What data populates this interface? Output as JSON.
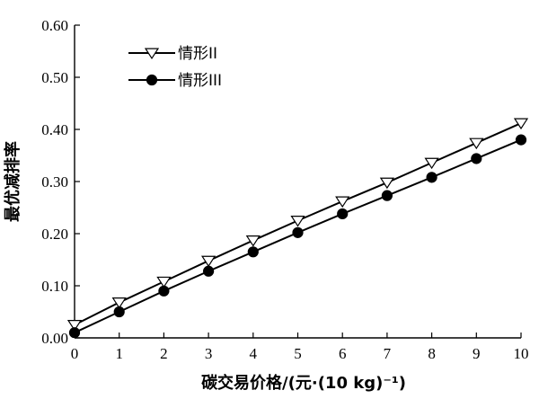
{
  "chart_data": {
    "type": "line",
    "title": "",
    "xlabel": "碳交易价格/(元·(10 kg)⁻¹)",
    "ylabel": "最优减排率",
    "xlim": [
      0,
      10
    ],
    "ylim": [
      0,
      0.6
    ],
    "x_ticks": [
      "0",
      "1",
      "2",
      "3",
      "4",
      "5",
      "6",
      "7",
      "8",
      "9",
      "10"
    ],
    "y_ticks": [
      "0.00",
      "0.10",
      "0.20",
      "0.30",
      "0.40",
      "0.50",
      "0.60"
    ],
    "x": [
      0,
      1,
      2,
      3,
      4,
      5,
      6,
      7,
      8,
      9,
      10
    ],
    "legend_position": "top-left",
    "grid": false,
    "series": [
      {
        "name": "情形II",
        "marker": "triangle-down-open",
        "color": "#000000",
        "values": [
          0.025,
          0.068,
          0.108,
          0.148,
          0.187,
          0.225,
          0.262,
          0.298,
          0.336,
          0.374,
          0.412
        ]
      },
      {
        "name": "情形III",
        "marker": "circle-filled",
        "color": "#000000",
        "values": [
          0.01,
          0.05,
          0.09,
          0.128,
          0.165,
          0.202,
          0.238,
          0.273,
          0.308,
          0.344,
          0.38
        ]
      }
    ]
  }
}
